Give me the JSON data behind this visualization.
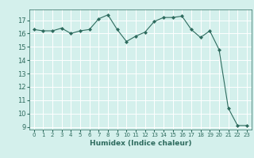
{
  "x": [
    0,
    1,
    2,
    3,
    4,
    5,
    6,
    7,
    8,
    9,
    10,
    11,
    12,
    13,
    14,
    15,
    16,
    17,
    18,
    19,
    20,
    21,
    22,
    23
  ],
  "y": [
    16.3,
    16.2,
    16.2,
    16.4,
    16.0,
    16.2,
    16.3,
    17.1,
    17.4,
    16.3,
    15.4,
    15.8,
    16.1,
    16.9,
    17.2,
    17.2,
    17.3,
    16.3,
    15.7,
    16.2,
    14.8,
    10.4,
    9.1,
    9.1
  ],
  "line_color": "#2e6b5e",
  "marker": "D",
  "marker_size": 2.0,
  "xlabel": "Humidex (Indice chaleur)",
  "ylim": [
    8.8,
    17.8
  ],
  "xlim": [
    -0.5,
    23.5
  ],
  "yticks": [
    9,
    10,
    11,
    12,
    13,
    14,
    15,
    16,
    17
  ],
  "xticks": [
    0,
    1,
    2,
    3,
    4,
    5,
    6,
    7,
    8,
    9,
    10,
    11,
    12,
    13,
    14,
    15,
    16,
    17,
    18,
    19,
    20,
    21,
    22,
    23
  ],
  "bg_color": "#d4f0ec",
  "grid_major_color": "#ffffff",
  "grid_minor_color": "#e8f8f5",
  "text_color": "#2e6b5e"
}
